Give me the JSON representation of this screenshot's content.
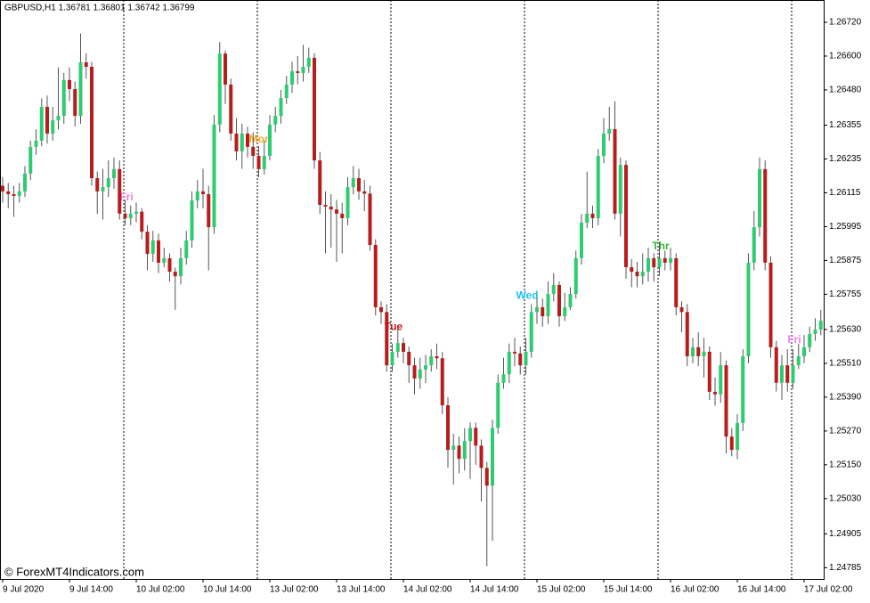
{
  "chart_data": {
    "type": "candlestick",
    "header": "GBPUSD,H1  1.36781 1.36801 1.36742 1.36799",
    "watermark": "© ForexMT4Indicators.com",
    "up_color": "#2ecc71",
    "down_color": "#b81d1d",
    "ylim": [
      1.24745,
      1.26799
    ],
    "yticks": [
      {
        "value": 1.2672,
        "label": "1.26720"
      },
      {
        "value": 1.266,
        "label": "1.26600"
      },
      {
        "value": 1.2648,
        "label": "1.26480"
      },
      {
        "value": 1.26355,
        "label": "1.26355"
      },
      {
        "value": 1.26235,
        "label": "1.26235"
      },
      {
        "value": 1.26115,
        "label": "1.26115"
      },
      {
        "value": 1.25995,
        "label": "1.25995"
      },
      {
        "value": 1.25875,
        "label": "1.25875"
      },
      {
        "value": 1.25755,
        "label": "1.25755"
      },
      {
        "value": 1.2563,
        "label": "1.25630"
      },
      {
        "value": 1.2551,
        "label": "1.25510"
      },
      {
        "value": 1.2539,
        "label": "1.25390"
      },
      {
        "value": 1.2527,
        "label": "1.25270"
      },
      {
        "value": 1.2515,
        "label": "1.25150"
      },
      {
        "value": 1.2503,
        "label": "1.25030"
      },
      {
        "value": 1.24905,
        "label": "1.24905"
      },
      {
        "value": 1.24785,
        "label": "1.24785"
      }
    ],
    "annotations": [
      {
        "text": "Fri",
        "color": "#ee82ee"
      },
      {
        "text": "Mon",
        "color": "#f5a623"
      },
      {
        "text": "Tue",
        "color": "#cc1111"
      },
      {
        "text": "Wed",
        "color": "#1ec0f0"
      },
      {
        "text": "Thr",
        "color": "#33bb33"
      },
      {
        "text": "Fri",
        "color": "#ee82ee"
      }
    ],
    "categories": [
      "9 Jul 2020",
      null,
      null,
      null,
      null,
      null,
      null,
      null,
      null,
      null,
      null,
      null,
      "9 Jul 14:00",
      null,
      null,
      null,
      null,
      null,
      null,
      null,
      null,
      null,
      null,
      null,
      "10 Jul 02:00",
      null,
      null,
      null,
      null,
      null,
      null,
      null,
      null,
      null,
      null,
      null,
      "10 Jul 14:00",
      null,
      null,
      null,
      null,
      null,
      null,
      null,
      null,
      null,
      null,
      null,
      "13 Jul 02:00",
      null,
      null,
      null,
      null,
      null,
      null,
      null,
      null,
      null,
      null,
      null,
      "13 Jul 14:00",
      null,
      null,
      null,
      null,
      null,
      null,
      null,
      null,
      null,
      null,
      null,
      "14 Jul 02:00",
      null,
      null,
      null,
      null,
      null,
      null,
      null,
      null,
      null,
      null,
      null,
      "14 Jul 14:00",
      null,
      null,
      null,
      null,
      null,
      null,
      null,
      null,
      null,
      null,
      null,
      "15 Jul 02:00",
      null,
      null,
      null,
      null,
      null,
      null,
      null,
      null,
      null,
      null,
      null,
      "15 Jul 14:00",
      null,
      null,
      null,
      null,
      null,
      null,
      null,
      null,
      null,
      null,
      null,
      "16 Jul 02:00",
      null,
      null,
      null,
      null,
      null,
      null,
      null,
      null,
      null,
      null,
      null,
      "16 Jul 14:00",
      null,
      null,
      null,
      null,
      null,
      null,
      null,
      null,
      null,
      null,
      null,
      "17 Jul 02:00",
      null,
      null,
      null
    ],
    "open": [
      1.2614,
      1.2612,
      1.2611,
      1.26104,
      1.2612,
      1.26183,
      1.26278,
      1.263,
      1.2642,
      1.26325,
      1.26372,
      1.26388,
      1.26515,
      1.26483,
      1.26388,
      1.26578,
      1.26562,
      1.26167,
      1.2612,
      1.26135,
      1.26167,
      1.26199,
      1.26041,
      1.26025,
      1.26041,
      1.26048,
      1.25977,
      1.25898,
      1.25946,
      1.25867,
      1.25883,
      1.25835,
      1.25819,
      1.25883,
      1.25946,
      1.26088,
      1.2612,
      1.2611,
      1.25993,
      1.26357,
      1.26609,
      1.26499,
      1.26325,
      1.26262,
      1.26325,
      1.26278,
      1.26246,
      1.26199,
      1.26246,
      1.26357,
      1.26388,
      1.26451,
      1.26499,
      1.26546,
      1.2654,
      1.26562,
      1.26594,
      1.2623,
      1.26072,
      1.26066,
      1.26056,
      1.26041,
      1.26025,
      1.26135,
      1.26167,
      1.2612,
      1.26112,
      1.2593,
      1.25709,
      1.25692,
      1.25503,
      1.25551,
      1.25582,
      1.25551,
      1.25503,
      1.25456,
      1.25488,
      1.25503,
      1.25535,
      1.25528,
      1.25361,
      1.25203,
      1.25218,
      1.25171,
      1.25234,
      1.25281,
      1.25218,
      1.25139,
      1.25076,
      1.25281,
      1.25441,
      1.25471,
      1.25551,
      1.25545,
      1.25503,
      1.25551,
      1.25692,
      1.25709,
      1.25677,
      1.25756,
      1.25788,
      1.25677,
      1.25709,
      1.25756,
      1.25883,
      1.26009,
      1.26041,
      1.26025,
      1.26246,
      1.26325,
      1.26341,
      1.26041,
      1.26214,
      1.25851,
      1.25835,
      1.25819,
      1.25835,
      1.25883,
      1.25851,
      1.25883,
      1.25867,
      1.25883,
      1.25709,
      1.25692,
      1.25535,
      1.25567,
      1.25535,
      1.25551,
      1.25409,
      1.254,
      1.25503,
      1.2525,
      1.25203,
      1.25298,
      1.25535,
      1.25867,
      1.25993,
      1.26199,
      1.25867,
      1.25567,
      1.25441,
      1.25503,
      1.25441,
      1.25503,
      1.25535,
      1.25567,
      1.25614,
      1.2563
    ],
    "high": [
      1.2617,
      1.2615,
      1.2614,
      1.2615,
      1.2621,
      1.263,
      1.2634,
      1.2645,
      1.2646,
      1.2642,
      1.2656,
      1.2654,
      1.2656,
      1.2651,
      1.2668,
      1.2661,
      1.2658,
      1.2619,
      1.262,
      1.2623,
      1.2624,
      1.2623,
      1.2609,
      1.2607,
      1.2608,
      1.2606,
      1.26,
      1.2598,
      1.2597,
      1.2592,
      1.259,
      1.2585,
      1.2592,
      1.2598,
      1.2612,
      1.2616,
      1.262,
      1.2614,
      1.2639,
      1.2665,
      1.2662,
      1.2652,
      1.2638,
      1.2636,
      1.2635,
      1.2633,
      1.2628,
      1.263,
      1.2639,
      1.2642,
      1.2648,
      1.2653,
      1.2658,
      1.266,
      1.2664,
      1.2663,
      1.2661,
      1.2626,
      1.2612,
      1.2611,
      1.2609,
      1.2608,
      1.2617,
      1.2621,
      1.262,
      1.2616,
      1.2614,
      1.2595,
      1.2573,
      1.2572,
      1.2558,
      1.2564,
      1.256,
      1.2557,
      1.2553,
      1.2553,
      1.2554,
      1.2556,
      1.2558,
      1.2555,
      1.2539,
      1.2526,
      1.2525,
      1.2528,
      1.253,
      1.253,
      1.2524,
      1.2516,
      1.2531,
      1.2547,
      1.2553,
      1.2558,
      1.256,
      1.2557,
      1.256,
      1.2572,
      1.2574,
      1.2574,
      1.258,
      1.2583,
      1.258,
      1.2576,
      1.2578,
      1.2591,
      1.2604,
      1.2619,
      1.2607,
      1.2627,
      1.2638,
      1.2642,
      1.2644,
      1.2624,
      1.2623,
      1.2588,
      1.2587,
      1.259,
      1.2592,
      1.259,
      1.2594,
      1.2591,
      1.2592,
      1.259,
      1.2573,
      1.2572,
      1.256,
      1.2562,
      1.256,
      1.2557,
      1.2546,
      1.2555,
      1.2552,
      1.2528,
      1.2533,
      1.2556,
      1.259,
      1.2605,
      1.2624,
      1.2623,
      1.2589,
      1.2559,
      1.2554,
      1.2556,
      1.2556,
      1.2558,
      1.2561,
      1.2564,
      1.2567,
      1.257
    ],
    "low": [
      1.2608,
      1.2606,
      1.2603,
      1.2608,
      1.261,
      1.2616,
      1.2625,
      1.2628,
      1.2629,
      1.263,
      1.2634,
      1.2636,
      1.2644,
      1.2635,
      1.2636,
      1.2652,
      1.2614,
      1.2604,
      1.2602,
      1.261,
      1.2613,
      1.2602,
      1.26,
      1.26,
      1.2601,
      1.2595,
      1.2584,
      1.2587,
      1.2583,
      1.2585,
      1.258,
      1.257,
      1.2579,
      1.2586,
      1.2592,
      1.2606,
      1.2606,
      1.2584,
      1.2597,
      1.2633,
      1.2643,
      1.263,
      1.2623,
      1.262,
      1.2624,
      1.262,
      1.2617,
      1.2618,
      1.2623,
      1.2633,
      1.2636,
      1.2643,
      1.2647,
      1.265,
      1.2651,
      1.2654,
      1.262,
      1.2604,
      1.259,
      1.2592,
      1.2587,
      1.259,
      1.26,
      1.2611,
      1.2609,
      1.2605,
      1.2591,
      1.2568,
      1.2565,
      1.2548,
      1.2548,
      1.2553,
      1.2551,
      1.2544,
      1.254,
      1.2542,
      1.2544,
      1.2548,
      1.2549,
      1.2533,
      1.2514,
      1.2508,
      1.2512,
      1.2513,
      1.251,
      1.2515,
      1.2502,
      1.2479,
      1.2488,
      1.2526,
      1.2542,
      1.2544,
      1.255,
      1.2547,
      1.2547,
      1.2553,
      1.2565,
      1.2564,
      1.2565,
      1.2573,
      1.2564,
      1.2566,
      1.257,
      1.2574,
      1.2586,
      1.2599,
      1.2599,
      1.26,
      1.2622,
      1.263,
      1.2602,
      1.2596,
      1.2581,
      1.2578,
      1.2578,
      1.2579,
      1.258,
      1.258,
      1.2582,
      1.2584,
      1.2584,
      1.2568,
      1.2562,
      1.255,
      1.2551,
      1.255,
      1.2546,
      1.2538,
      1.2536,
      1.2537,
      1.2519,
      1.2518,
      1.2517,
      1.2527,
      1.2551,
      1.2584,
      1.2596,
      1.2584,
      1.2553,
      1.2541,
      1.2538,
      1.2541,
      1.2542,
      1.2549,
      1.2551,
      1.2555,
      1.2559,
      1.2561
    ],
    "close": [
      1.2612,
      1.2611,
      1.26104,
      1.2612,
      1.26183,
      1.26278,
      1.263,
      1.2642,
      1.26325,
      1.26372,
      1.26388,
      1.26515,
      1.26483,
      1.26388,
      1.26578,
      1.26562,
      1.26167,
      1.2612,
      1.26135,
      1.26167,
      1.26199,
      1.26041,
      1.26025,
      1.26041,
      1.26048,
      1.25977,
      1.25898,
      1.25946,
      1.25867,
      1.25883,
      1.25835,
      1.25819,
      1.25883,
      1.25946,
      1.26088,
      1.2612,
      1.2611,
      1.25993,
      1.26357,
      1.26609,
      1.26499,
      1.26325,
      1.26262,
      1.26325,
      1.26278,
      1.26246,
      1.26199,
      1.26246,
      1.26357,
      1.26388,
      1.26451,
      1.26499,
      1.26546,
      1.2654,
      1.26562,
      1.26594,
      1.2623,
      1.26072,
      1.26066,
      1.26056,
      1.26041,
      1.26025,
      1.26135,
      1.26167,
      1.2612,
      1.26112,
      1.2593,
      1.25709,
      1.25692,
      1.25503,
      1.25551,
      1.25582,
      1.25551,
      1.25503,
      1.25456,
      1.25488,
      1.25503,
      1.25535,
      1.25528,
      1.25361,
      1.25203,
      1.25218,
      1.25171,
      1.25234,
      1.25281,
      1.25218,
      1.25139,
      1.25076,
      1.25281,
      1.25441,
      1.25471,
      1.25551,
      1.25545,
      1.25503,
      1.25551,
      1.25692,
      1.25709,
      1.25677,
      1.25756,
      1.25788,
      1.25677,
      1.25709,
      1.25756,
      1.25883,
      1.26009,
      1.26041,
      1.26025,
      1.26246,
      1.26325,
      1.26341,
      1.26041,
      1.26214,
      1.25851,
      1.25835,
      1.25819,
      1.25835,
      1.25883,
      1.25851,
      1.25883,
      1.25867,
      1.25883,
      1.25709,
      1.25692,
      1.25535,
      1.25567,
      1.25535,
      1.25551,
      1.25409,
      1.254,
      1.25503,
      1.2525,
      1.25203,
      1.25298,
      1.25535,
      1.25867,
      1.25993,
      1.26199,
      1.25867,
      1.25567,
      1.25441,
      1.25503,
      1.25441,
      1.25503,
      1.25535,
      1.25567,
      1.25614,
      1.2563,
      1.25661
    ]
  }
}
